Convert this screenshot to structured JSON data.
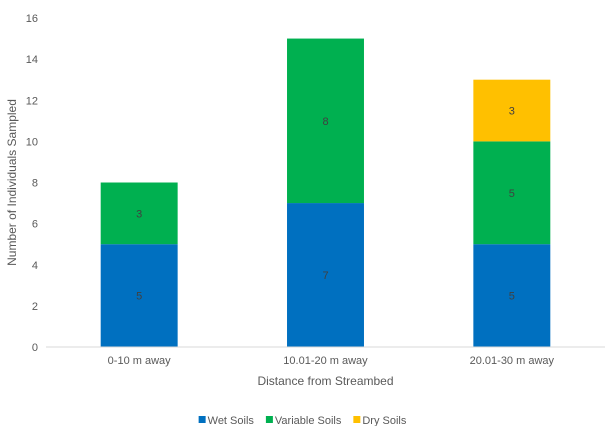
{
  "chart_data": {
    "type": "bar",
    "stacked": true,
    "title": "",
    "xlabel": "Distance from Streambed",
    "ylabel": "Number of Individuals Sampled",
    "categories": [
      "0-10 m away",
      "10.01-20 m away",
      "20.01-30 m away"
    ],
    "series": [
      {
        "name": "Wet Soils",
        "values": [
          5,
          7,
          5
        ],
        "color": "#0070C0"
      },
      {
        "name": "Variable Soils",
        "values": [
          3,
          8,
          5
        ],
        "color": "#00B050"
      },
      {
        "name": "Dry Soils",
        "values": [
          0,
          0,
          3
        ],
        "color": "#FFC000"
      }
    ],
    "ylim": [
      0,
      16
    ],
    "yticks": [
      0,
      2,
      4,
      6,
      8,
      10,
      12,
      14,
      16
    ],
    "grid": false,
    "legend_position": "bottom"
  }
}
